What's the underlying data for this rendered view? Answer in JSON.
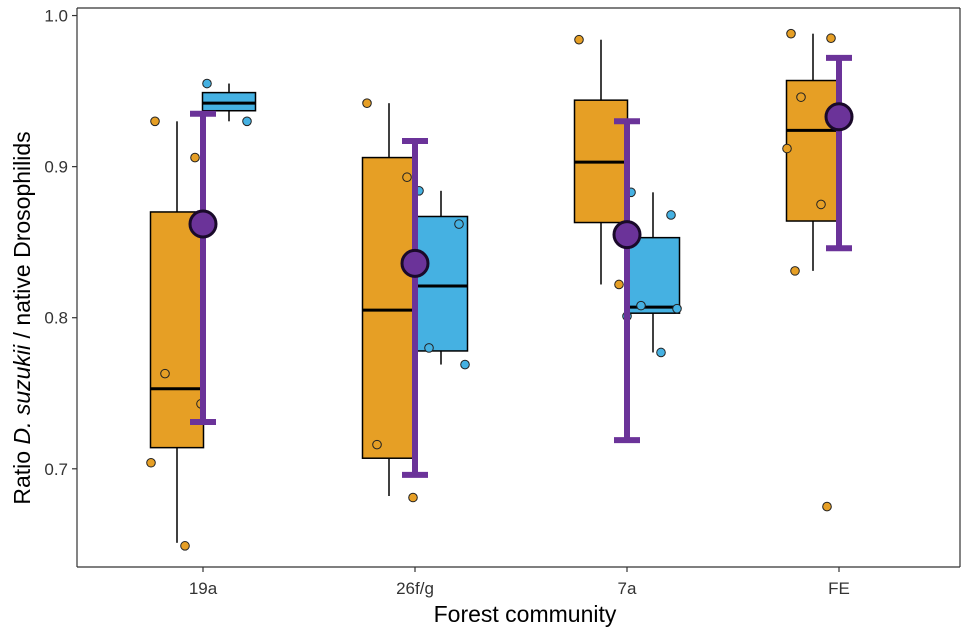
{
  "chart_data": {
    "type": "box",
    "title": "",
    "xlabel": "Forest community",
    "ylabel": {
      "prefix": "Ratio ",
      "italic": "D. suzukii",
      "suffix": " / native Drosophilids"
    },
    "ylim": [
      0.635,
      1.005
    ],
    "yticks": [
      0.7,
      0.8,
      0.9,
      1.0
    ],
    "ytick_labels": [
      "0.7",
      "0.8",
      "0.9",
      "1.0"
    ],
    "categories": [
      "19a",
      "26f/g",
      "7a",
      "FE"
    ],
    "grid": false,
    "legend": "none",
    "colors": {
      "orange": "#E69F25",
      "blue": "#45B1E2",
      "purple": "#6B3399",
      "purple_dark": "#1A0A2A",
      "axis": "#333333"
    },
    "series": [
      {
        "color": "orange",
        "boxes": [
          {
            "category": "19a",
            "whisker_low": 0.651,
            "q1": 0.714,
            "median": 0.753,
            "q3": 0.87,
            "whisker_high": 0.93,
            "points": [
              0.93,
              0.906,
              0.763,
              0.743,
              0.704,
              0.649
            ]
          },
          {
            "category": "26f/g",
            "whisker_low": 0.682,
            "q1": 0.707,
            "median": 0.805,
            "q3": 0.906,
            "whisker_high": 0.942,
            "points": [
              0.942,
              0.893,
              0.716,
              0.681
            ]
          },
          {
            "category": "7a",
            "whisker_low": 0.822,
            "q1": 0.863,
            "median": 0.903,
            "q3": 0.944,
            "whisker_high": 0.984,
            "points": [
              0.984,
              0.822
            ]
          },
          {
            "category": "FE",
            "whisker_low": 0.831,
            "q1": 0.864,
            "median": 0.924,
            "q3": 0.957,
            "whisker_high": 0.988,
            "points": [
              0.988,
              0.985,
              0.946,
              0.935,
              0.912,
              0.875,
              0.831,
              0.675
            ]
          }
        ]
      },
      {
        "color": "blue",
        "boxes": [
          {
            "category": "19a",
            "whisker_low": 0.93,
            "q1": 0.937,
            "median": 0.942,
            "q3": 0.949,
            "whisker_high": 0.955,
            "points": [
              0.955,
              0.93
            ]
          },
          {
            "category": "26f/g",
            "whisker_low": 0.769,
            "q1": 0.778,
            "median": 0.821,
            "q3": 0.867,
            "whisker_high": 0.884,
            "points": [
              0.884,
              0.862,
              0.78,
              0.769
            ]
          },
          {
            "category": "7a",
            "whisker_low": 0.777,
            "q1": 0.803,
            "median": 0.807,
            "q3": 0.853,
            "whisker_high": 0.883,
            "points": [
              0.883,
              0.868,
              0.808,
              0.806,
              0.801,
              0.777
            ]
          }
        ]
      }
    ],
    "means": [
      {
        "category": "19a",
        "mean": 0.862,
        "ci_low": 0.731,
        "ci_high": 0.935
      },
      {
        "category": "26f/g",
        "mean": 0.836,
        "ci_low": 0.696,
        "ci_high": 0.917
      },
      {
        "category": "7a",
        "mean": 0.855,
        "ci_low": 0.719,
        "ci_high": 0.93
      },
      {
        "category": "FE",
        "mean": 0.933,
        "ci_low": 0.846,
        "ci_high": 0.972
      }
    ]
  }
}
